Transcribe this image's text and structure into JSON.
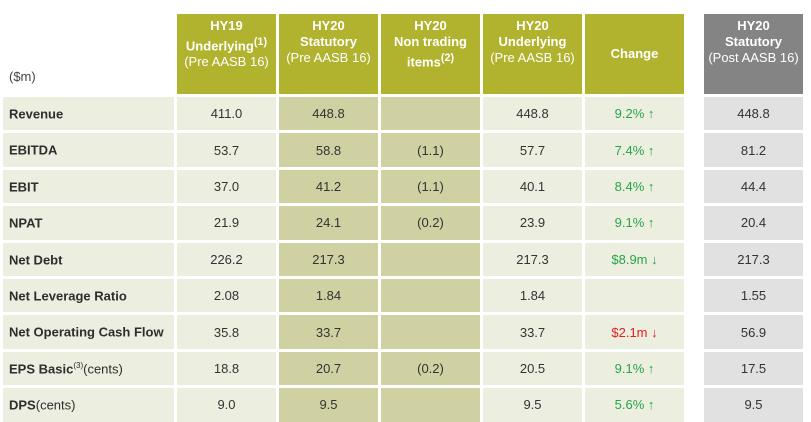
{
  "unit_label": "($m)",
  "headers": [
    {
      "l1": "HY19",
      "l2": "Underlying",
      "sup": "(1)",
      "l3": "(Pre AASB 16)"
    },
    {
      "l1": "HY20",
      "l2": "Statutory",
      "sup": "",
      "l3": "(Pre AASB 16)"
    },
    {
      "l1": "HY20",
      "l2": "Non trading",
      "l2b": "items",
      "sup": "(2)",
      "l3": ""
    },
    {
      "l1": "HY20",
      "l2": "Underlying",
      "sup": "",
      "l3": "(Pre AASB 16)"
    },
    {
      "l1": "Change"
    },
    {
      "l1": "HY20",
      "l2": "Statutory",
      "sup": "",
      "l3": "(Post AASB 16)"
    }
  ],
  "rows": [
    {
      "label": "Revenue",
      "sub": "",
      "sup": "",
      "hy19": "411.0",
      "stat": "448.8",
      "nontrading": "",
      "under": "448.8",
      "change": "9.2% ↑",
      "dir": "up",
      "post": "448.8"
    },
    {
      "label": "EBITDA",
      "sub": "",
      "sup": "",
      "hy19": "53.7",
      "stat": "58.8",
      "nontrading": "(1.1)",
      "under": "57.7",
      "change": "7.4% ↑",
      "dir": "up",
      "post": "81.2"
    },
    {
      "label": "EBIT",
      "sub": "",
      "sup": "",
      "hy19": "37.0",
      "stat": "41.2",
      "nontrading": "(1.1)",
      "under": "40.1",
      "change": "8.4% ↑",
      "dir": "up",
      "post": "44.4"
    },
    {
      "label": "NPAT",
      "sub": "",
      "sup": "",
      "hy19": "21.9",
      "stat": "24.1",
      "nontrading": "(0.2)",
      "under": "23.9",
      "change": "9.1% ↑",
      "dir": "up",
      "post": "20.4"
    },
    {
      "label": "Net Debt",
      "sub": "",
      "sup": "",
      "hy19": "226.2",
      "stat": "217.3",
      "nontrading": "",
      "under": "217.3",
      "change": "$8.9m ↓",
      "dir": "up",
      "post": "217.3"
    },
    {
      "label": "Net Leverage Ratio",
      "sub": "",
      "sup": "",
      "hy19": "2.08",
      "stat": "1.84",
      "nontrading": "",
      "under": "1.84",
      "change": "",
      "dir": "",
      "post": "1.55"
    },
    {
      "label": "Net Operating Cash Flow",
      "sub": "",
      "sup": "",
      "hy19": "35.8",
      "stat": "33.7",
      "nontrading": "",
      "under": "33.7",
      "change": "$2.1m ↓",
      "dir": "down",
      "post": "56.9"
    },
    {
      "label": "EPS Basic",
      "sub": "(cents)",
      "sup": "(3)",
      "hy19": "18.8",
      "stat": "20.7",
      "nontrading": "(0.2)",
      "under": "20.5",
      "change": "9.1% ↑",
      "dir": "up",
      "post": "17.5"
    },
    {
      "label": "DPS",
      "sub": "(cents)",
      "sup": "",
      "hy19": "9.0",
      "stat": "9.5",
      "nontrading": "",
      "under": "9.5",
      "change": "5.6% ↑",
      "dir": "up",
      "post": "9.5"
    }
  ],
  "colors": {
    "header_olive": "#b1b22d",
    "header_grey": "#848484",
    "up": "#27a547",
    "down": "#e02020"
  }
}
